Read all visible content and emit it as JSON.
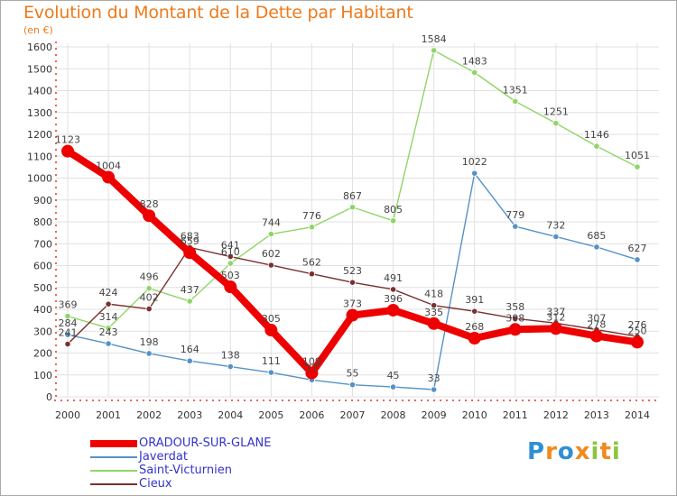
{
  "header": {
    "title": "Evolution du Montant de la Dette par Habitant",
    "unit": "(en €)"
  },
  "brand": {
    "logo_text": "Proxiti",
    "colors": [
      "#2f8fd6",
      "#f08a1e",
      "#8cc63f"
    ]
  },
  "chart_data": {
    "type": "line",
    "title": "Evolution du Montant de la Dette par Habitant",
    "subtitle": "(en €)",
    "xlabel": "",
    "ylabel": "",
    "x": [
      "2000",
      "2001",
      "2002",
      "2003",
      "2004",
      "2005",
      "2006",
      "2007",
      "2008",
      "2009",
      "2010",
      "2011",
      "2012",
      "2013",
      "2014"
    ],
    "ylim": [
      0,
      1600
    ],
    "yticks": [
      0,
      100,
      200,
      300,
      400,
      500,
      600,
      700,
      800,
      900,
      1000,
      1100,
      1200,
      1300,
      1400,
      1500,
      1600
    ],
    "grid": true,
    "legend_position": "bottom-left",
    "series": [
      {
        "name": "ORADOUR-SUR-GLANE",
        "color": "#ee0000",
        "emphasis": true,
        "values": [
          1123,
          1004,
          828,
          659,
          503,
          305,
          109,
          373,
          396,
          335,
          268,
          308,
          312,
          278,
          250
        ]
      },
      {
        "name": "Javerdat",
        "color": "#5592c8",
        "values": [
          284,
          243,
          198,
          164,
          138,
          111,
          77,
          55,
          45,
          33,
          1022,
          779,
          732,
          685,
          627
        ]
      },
      {
        "name": "Saint-Victurnien",
        "color": "#90d568",
        "values": [
          369,
          314,
          496,
          437,
          610,
          744,
          776,
          867,
          805,
          1584,
          1483,
          1351,
          1251,
          1146,
          1051
        ]
      },
      {
        "name": "Cieux",
        "color": "#7a3030",
        "values": [
          241,
          424,
          402,
          683,
          641,
          602,
          562,
          523,
          491,
          418,
          391,
          358,
          337,
          307,
          276
        ]
      }
    ]
  }
}
